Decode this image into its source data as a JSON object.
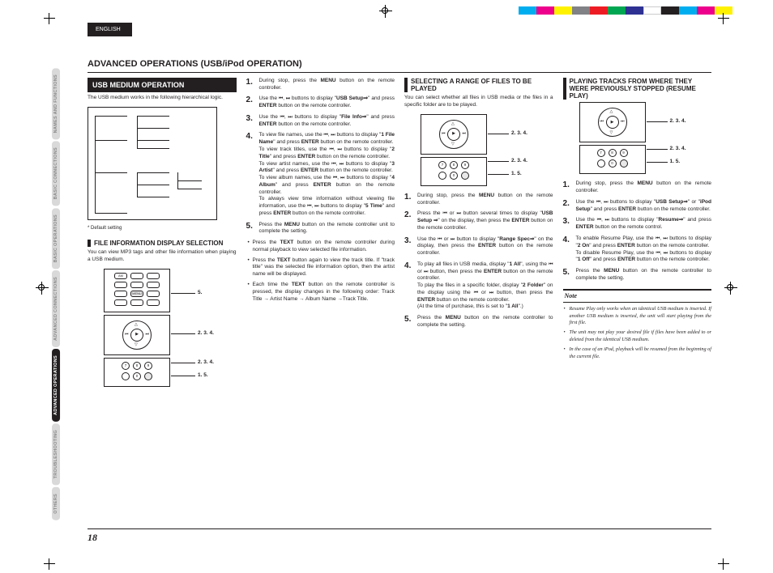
{
  "color_bar": [
    "#00aeef",
    "#ec008c",
    "#fff200",
    "#808285",
    "#ed1c24",
    "#00a651",
    "#2e3192",
    "#ffffff",
    "#231f20",
    "#00aeef",
    "#ec008c",
    "#fff200"
  ],
  "lang_label": "ENGLISH",
  "side_tabs": [
    {
      "label": "NAMES AND FUNCTIONS",
      "active": false
    },
    {
      "label": "BASIC CONNECTIONS",
      "active": false
    },
    {
      "label": "BASIC OPERATIONS",
      "active": false
    },
    {
      "label": "ADVANCED CONNECTIONS",
      "active": false
    },
    {
      "label": "ADVANCED OPERATIONS",
      "active": true
    },
    {
      "label": "TROUBLESHOOTING",
      "active": false
    },
    {
      "label": "OTHERS",
      "active": false
    }
  ],
  "main_heading_a": "ADVANCED OPERATIONS",
  "main_heading_b": "(USB/iPod OPERATION)",
  "section_banner": "USB MEDIUM OPERATION",
  "intro_usb": "The USB medium works in the following hierarchical logic.",
  "default_note": "* Default setting",
  "subheading_fileinfo": "FILE INFORMATION DISPLAY SELECTION",
  "fileinfo_intro": "You can view MP3 tags and other file information when playing a USB medium.",
  "remote_callouts": {
    "a": "5.",
    "b": "2. 3. 4.",
    "c": "2. 3. 4.",
    "d": "1. 5."
  },
  "steps_col2": [
    "During stop, press the <b>MENU</b> button on the remote controller.",
    "Use the <span class='icon-skip'>⏮, ⏭</span> buttons to display \"<b>USB Setup⇒</b>\" and press <b>ENTER</b> button on the remote controller.",
    "Use the <span class='icon-skip'>⏮, ⏭</span> buttons to display \"<b>File Info⇒</b>\" and press <b>ENTER</b> button on the remote controller.",
    "To view file names, use the <span class='icon-skip'>⏮, ⏭</span> buttons to display \"<b>1 File Name</b>\" and press <b>ENTER</b> button on the remote controller.<br>To view track titles, use the <span class='icon-skip'>⏮, ⏭</span> buttons to display \"<b>2 Title</b>\" and press <b>ENTER</b> button on the remote controller.<br>To view artist names, use the <span class='icon-skip'>⏮, ⏭</span> buttons to display \"<b>3 Artist</b>\" and press <b>ENTER</b> button on the remote controller.<br>To view album names, use the <span class='icon-skip'>⏮, ⏭</span> buttons to display \"<b>4 Album</b>\" and press <b>ENTER</b> button on the remote controller.<br>To always view time information without viewing file information, use the <span class='icon-skip'>⏮, ⏭</span> buttons to display \"<b>5 Time</b>\" and press <b>ENTER</b> button on the remote controller.",
    "Press the <b>MENU</b> button on the remote controller unit to complete the setting."
  ],
  "bullets_col2": [
    "Press the <b>TEXT</b> button on the remote controller during normal playback to view selected file information.",
    "Press the <b>TEXT</b> button again to view the track title. If \"track title\" was the selected file information option, then the artist name will be displayed.",
    "Each time the <b>TEXT</b> button on the remote controller is pressed, the display changes in the following order: Track Title → Artist Name → Album Name →Track Title."
  ],
  "subheading_range": "SELECTING A RANGE OF FILES TO BE PLAYED",
  "range_intro": "You can select whether all files in USB media or the files in a specific folder are to be played.",
  "remote_callouts_small": {
    "b": "2. 3. 4.",
    "c": "2. 3. 4.",
    "d": "1. 5."
  },
  "steps_col3": [
    "During stop, press the <b>MENU</b> button on the remote controller.",
    "Press the <span class='icon-skip'>⏮</span> or <span class='icon-skip'>⏭</span> button several times to display \"<b>USB Setup ⇒</b>\" on the display, then press the <b>ENTER</b> button on the remote controller.",
    "Use the <span class='icon-skip'>⏮</span> or <span class='icon-skip'>⏭</span> button to display \"<b>Range Spec⇒</b>\" on the display, then press the <b>ENTER</b> button on the remote controller.",
    "To play all files in USB media, display \"<b>1 All</b>\", using the <span class='icon-skip'>⏮</span> or <span class='icon-skip'>⏭</span> button, then press the <b>ENTER</b> button on the remote controller.<br>To play the files in a specific folder, display \"<b>2 Folder</b>\" on the display using the <span class='icon-skip'>⏮</span> or <span class='icon-skip'>⏭</span> button, then press the <b>ENTER</b> button on the remote controller.<br>(At the time of purchase, this is set to \"<b>1 All</b>\".)",
    "Press the <b>MENU</b> button on the remote controller to complete the setting."
  ],
  "subheading_resume": "PLAYING TRACKS FROM WHERE THEY WERE PREVIOUSLY STOPPED (RESUME PLAY)",
  "steps_col4": [
    "During stop, press the <b>MENU</b> button on the remote controller.",
    "Use the <span class='icon-skip'>⏮, ⏭</span> buttons to display \"<b>USB Setup⇒</b>\" or \"<b>iPod Setup</b>\" and press <b>ENTER</b> button on the remote controller.",
    "Use the <span class='icon-skip'>⏮, ⏭</span> buttons to display \"<b>Resume⇒</b>\" and press <b>ENTER</b> button on the remote control.",
    "To enable Resume Play, use the <span class='icon-skip'>⏮, ⏭</span> buttons to display \"<b>2 On</b>\" and press <b>ENTER</b> button on the remote controller.<br>To disable Resume Play, use the <span class='icon-skip'>⏮, ⏭</span> buttons to display \"<b>1 Off</b>\" and press <b>ENTER</b> button on the remote controller.",
    "Press the <b>MENU</b> button on the remote controller to complete the setting."
  ],
  "note_title": "Note",
  "notes": [
    "Resume Play only works when an identical USB medium is inserted. If another USB medium is inserted, the unit will start playing from the first file.",
    "The unit may not play your desired file if files have been added to or deleted from the identical USB medium.",
    "In the case of an iPod, playback will be resumed from the beginning of the current file."
  ],
  "page_number": "18"
}
